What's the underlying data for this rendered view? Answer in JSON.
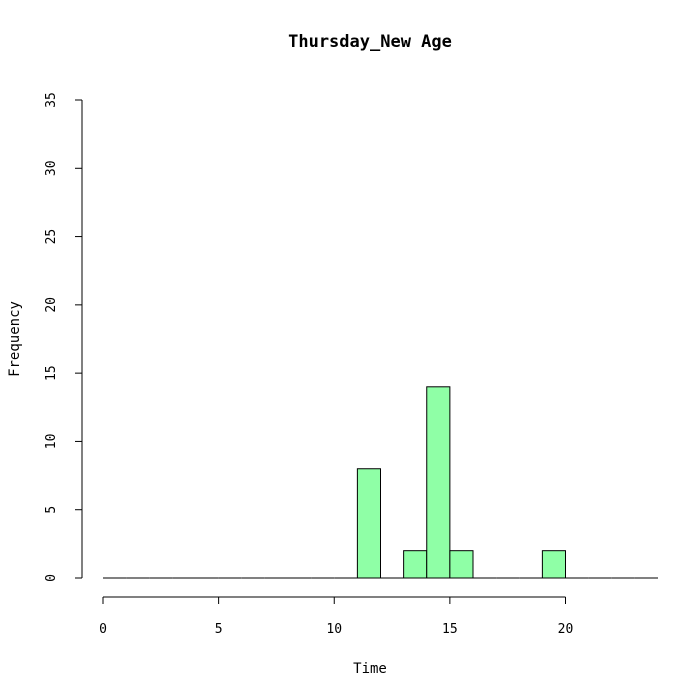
{
  "chart_data": {
    "type": "bar",
    "title": "Thursday_New Age",
    "xlabel": "Time",
    "ylabel": "Frequency",
    "xlim": [
      0,
      24
    ],
    "ylim": [
      0,
      35
    ],
    "x_ticks": [
      0,
      5,
      10,
      15,
      20
    ],
    "y_ticks": [
      0,
      5,
      10,
      15,
      20,
      25,
      30,
      35
    ],
    "bin_width": 1,
    "bins": [
      {
        "start": 0,
        "end": 1,
        "count": 0
      },
      {
        "start": 1,
        "end": 2,
        "count": 0
      },
      {
        "start": 2,
        "end": 3,
        "count": 0
      },
      {
        "start": 3,
        "end": 4,
        "count": 0
      },
      {
        "start": 4,
        "end": 5,
        "count": 0
      },
      {
        "start": 5,
        "end": 6,
        "count": 0
      },
      {
        "start": 6,
        "end": 7,
        "count": 0
      },
      {
        "start": 7,
        "end": 8,
        "count": 0
      },
      {
        "start": 8,
        "end": 9,
        "count": 0
      },
      {
        "start": 9,
        "end": 10,
        "count": 0
      },
      {
        "start": 10,
        "end": 11,
        "count": 0
      },
      {
        "start": 11,
        "end": 12,
        "count": 8
      },
      {
        "start": 12,
        "end": 13,
        "count": 0
      },
      {
        "start": 13,
        "end": 14,
        "count": 2
      },
      {
        "start": 14,
        "end": 15,
        "count": 14
      },
      {
        "start": 15,
        "end": 16,
        "count": 2
      },
      {
        "start": 16,
        "end": 17,
        "count": 0
      },
      {
        "start": 17,
        "end": 18,
        "count": 0
      },
      {
        "start": 18,
        "end": 19,
        "count": 0
      },
      {
        "start": 19,
        "end": 20,
        "count": 2
      },
      {
        "start": 20,
        "end": 21,
        "count": 0
      },
      {
        "start": 21,
        "end": 22,
        "count": 0
      },
      {
        "start": 22,
        "end": 23,
        "count": 0
      },
      {
        "start": 23,
        "end": 24,
        "count": 0
      }
    ],
    "bar_color": "#8FFFA6",
    "border_color": "#000000",
    "grid": false,
    "legend": "none"
  }
}
